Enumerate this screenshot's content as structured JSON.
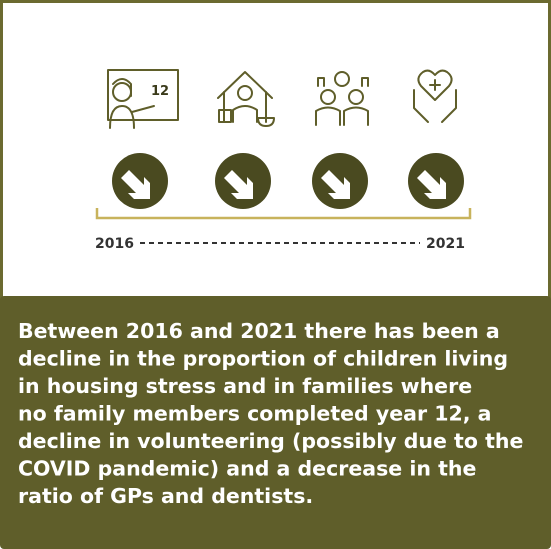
{
  "icons": {
    "board_number": "12"
  },
  "timeline": {
    "start": "2016",
    "end": "2021"
  },
  "summary": {
    "lines": [
      "Between 2016 and 2021 there has been a",
      "decline in the proportion of children living",
      "in housing stress and in families where",
      "no family members completed year 12, a",
      "decline in volunteering (possibly due to the",
      "COVID pandemic) and a decrease in the",
      "ratio of GPs and dentists."
    ]
  }
}
